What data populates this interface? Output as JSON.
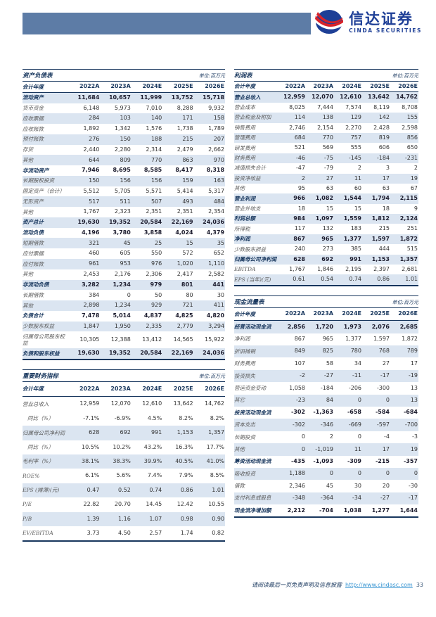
{
  "logo": {
    "cn": "信达证券",
    "en": "CINDA SECURITIES"
  },
  "colors": {
    "header_bar": "#5d7ca6",
    "accent_navy": "#17365d",
    "row_stripe": "#dbe5f1",
    "logo_blue": "#1e3f96",
    "logo_red": "#d8232a",
    "link_blue": "#3b97d3"
  },
  "tables": {
    "balance_sheet": {
      "title": "资产负债表",
      "unit": "单位:百万元",
      "columns": [
        "会计年度",
        "2022A",
        "2023A",
        "2024E",
        "2025E",
        "2026E"
      ],
      "rows": [
        {
          "label": "流动资产",
          "bold": true,
          "values": [
            "11,684",
            "10,657",
            "11,999",
            "13,752",
            "15,718"
          ]
        },
        {
          "label": "货币资金",
          "bold": false,
          "values": [
            "6,148",
            "5,973",
            "7,010",
            "8,288",
            "9,932"
          ]
        },
        {
          "label": "应收票据",
          "bold": false,
          "values": [
            "284",
            "103",
            "140",
            "171",
            "158"
          ]
        },
        {
          "label": "应收账款",
          "bold": false,
          "values": [
            "1,892",
            "1,342",
            "1,576",
            "1,738",
            "1,789"
          ]
        },
        {
          "label": "预付账款",
          "bold": false,
          "values": [
            "276",
            "150",
            "188",
            "215",
            "207"
          ]
        },
        {
          "label": "存货",
          "bold": false,
          "values": [
            "2,440",
            "2,280",
            "2,314",
            "2,479",
            "2,662"
          ]
        },
        {
          "label": "其他",
          "bold": false,
          "values": [
            "644",
            "809",
            "770",
            "863",
            "970"
          ]
        },
        {
          "label": "非流动资产",
          "bold": true,
          "values": [
            "7,946",
            "8,695",
            "8,585",
            "8,417",
            "8,318"
          ]
        },
        {
          "label": "长期股权投资",
          "bold": false,
          "values": [
            "150",
            "156",
            "156",
            "159",
            "163"
          ]
        },
        {
          "label": "固定资产（合计）",
          "bold": false,
          "values": [
            "5,512",
            "5,705",
            "5,571",
            "5,414",
            "5,317"
          ]
        },
        {
          "label": "无形资产",
          "bold": false,
          "values": [
            "517",
            "511",
            "507",
            "493",
            "484"
          ]
        },
        {
          "label": "其他",
          "bold": false,
          "values": [
            "1,767",
            "2,323",
            "2,351",
            "2,351",
            "2,354"
          ]
        },
        {
          "label": "资产总计",
          "bold": true,
          "values": [
            "19,630",
            "19,352",
            "20,584",
            "22,169",
            "24,036"
          ]
        },
        {
          "label": "流动负债",
          "bold": true,
          "values": [
            "4,196",
            "3,780",
            "3,858",
            "4,024",
            "4,379"
          ]
        },
        {
          "label": "短期借款",
          "bold": false,
          "values": [
            "321",
            "45",
            "25",
            "15",
            "35"
          ]
        },
        {
          "label": "应付票据",
          "bold": false,
          "values": [
            "460",
            "605",
            "550",
            "572",
            "652"
          ]
        },
        {
          "label": "应付账款",
          "bold": false,
          "values": [
            "961",
            "953",
            "976",
            "1,020",
            "1,110"
          ]
        },
        {
          "label": "其他",
          "bold": false,
          "values": [
            "2,453",
            "2,176",
            "2,306",
            "2,417",
            "2,582"
          ]
        },
        {
          "label": "非流动负债",
          "bold": true,
          "values": [
            "3,282",
            "1,234",
            "979",
            "801",
            "441"
          ]
        },
        {
          "label": "长期借款",
          "bold": false,
          "values": [
            "384",
            "0",
            "50",
            "80",
            "30"
          ]
        },
        {
          "label": "其他",
          "bold": false,
          "values": [
            "2,898",
            "1,234",
            "929",
            "721",
            "411"
          ]
        },
        {
          "label": "负债合计",
          "bold": true,
          "values": [
            "7,478",
            "5,014",
            "4,837",
            "4,825",
            "4,820"
          ]
        },
        {
          "label": "少数股东权益",
          "bold": false,
          "values": [
            "1,847",
            "1,950",
            "2,335",
            "2,779",
            "3,294"
          ]
        },
        {
          "label": "归属母公司股东权益",
          "bold": false,
          "values": [
            "10,305",
            "12,388",
            "13,412",
            "14,565",
            "15,922"
          ]
        },
        {
          "label": "负债和股东权益",
          "bold": true,
          "values": [
            "19,630",
            "19,352",
            "20,584",
            "22,169",
            "24,036"
          ]
        }
      ]
    },
    "key_metrics": {
      "title": "重要财务指标",
      "unit": "单位:百万元",
      "columns": [
        "会计年度",
        "2022A",
        "2023A",
        "2024E",
        "2025E",
        "2026E"
      ],
      "rows": [
        {
          "label": "营业总收入",
          "bold": false,
          "values": [
            "12,959",
            "12,070",
            "12,610",
            "13,642",
            "14,762"
          ]
        },
        {
          "label": "同比（%）",
          "bold": false,
          "indent": true,
          "values": [
            "-7.1%",
            "-6.9%",
            "4.5%",
            "8.2%",
            "8.2%"
          ]
        },
        {
          "label": "归属母公司净利润",
          "bold": false,
          "values": [
            "628",
            "692",
            "991",
            "1,153",
            "1,357"
          ]
        },
        {
          "label": "同比（%）",
          "bold": false,
          "indent": true,
          "values": [
            "10.5%",
            "10.2%",
            "43.2%",
            "16.3%",
            "17.7%"
          ]
        },
        {
          "label": "毛利率（%）",
          "bold": false,
          "values": [
            "38.1%",
            "38.3%",
            "39.9%",
            "40.5%",
            "41.0%"
          ]
        },
        {
          "label": "ROE%",
          "bold": false,
          "values": [
            "6.1%",
            "5.6%",
            "7.4%",
            "7.9%",
            "8.5%"
          ]
        },
        {
          "label": "EPS (摊薄)(元)",
          "bold": false,
          "values": [
            "0.47",
            "0.52",
            "0.74",
            "0.86",
            "1.01"
          ]
        },
        {
          "label": "P/E",
          "bold": false,
          "values": [
            "22.82",
            "20.70",
            "14.45",
            "12.42",
            "10.55"
          ]
        },
        {
          "label": "P/B",
          "bold": false,
          "values": [
            "1.39",
            "1.16",
            "1.07",
            "0.98",
            "0.90"
          ]
        },
        {
          "label": "EV/EBITDA",
          "bold": false,
          "values": [
            "3.73",
            "4.50",
            "2.57",
            "1.74",
            "0.82"
          ]
        }
      ]
    },
    "income_statement": {
      "title": "利润表",
      "unit": "单位:百万元",
      "columns": [
        "会计年度",
        "2022A",
        "2023A",
        "2024E",
        "2025E",
        "2026E"
      ],
      "rows": [
        {
          "label": "营业总收入",
          "bold": true,
          "values": [
            "12,959",
            "12,070",
            "12,610",
            "13,642",
            "14,762"
          ]
        },
        {
          "label": "营业成本",
          "bold": false,
          "values": [
            "8,025",
            "7,444",
            "7,574",
            "8,119",
            "8,708"
          ]
        },
        {
          "label": "营业税金及附加",
          "bold": false,
          "values": [
            "114",
            "138",
            "129",
            "142",
            "155"
          ]
        },
        {
          "label": "销售费用",
          "bold": false,
          "values": [
            "2,746",
            "2,154",
            "2,270",
            "2,428",
            "2,598"
          ]
        },
        {
          "label": "管理费用",
          "bold": false,
          "values": [
            "684",
            "770",
            "757",
            "819",
            "856"
          ]
        },
        {
          "label": "研发费用",
          "bold": false,
          "values": [
            "521",
            "569",
            "555",
            "606",
            "650"
          ]
        },
        {
          "label": "财务费用",
          "bold": false,
          "values": [
            "-46",
            "-75",
            "-145",
            "-184",
            "-231"
          ]
        },
        {
          "label": "减值损失合计",
          "bold": false,
          "values": [
            "-47",
            "-79",
            "2",
            "3",
            "2"
          ]
        },
        {
          "label": "投资净收益",
          "bold": false,
          "values": [
            "2",
            "27",
            "11",
            "17",
            "19"
          ]
        },
        {
          "label": "其他",
          "bold": false,
          "values": [
            "95",
            "63",
            "60",
            "63",
            "67"
          ]
        },
        {
          "label": "营业利润",
          "bold": true,
          "values": [
            "966",
            "1,082",
            "1,544",
            "1,794",
            "2,115"
          ]
        },
        {
          "label": "营业外收支",
          "bold": false,
          "values": [
            "18",
            "15",
            "15",
            "18",
            "9"
          ]
        },
        {
          "label": "利润总额",
          "bold": true,
          "values": [
            "984",
            "1,097",
            "1,559",
            "1,812",
            "2,124"
          ]
        },
        {
          "label": "所得税",
          "bold": false,
          "values": [
            "117",
            "132",
            "183",
            "215",
            "251"
          ]
        },
        {
          "label": "净利润",
          "bold": true,
          "values": [
            "867",
            "965",
            "1,377",
            "1,597",
            "1,872"
          ]
        },
        {
          "label": "少数股东损益",
          "bold": false,
          "values": [
            "240",
            "273",
            "385",
            "444",
            "515"
          ]
        },
        {
          "label": "归属母公司净利润",
          "bold": true,
          "values": [
            "628",
            "692",
            "991",
            "1,153",
            "1,357"
          ]
        },
        {
          "label": "EBITDA",
          "bold": false,
          "values": [
            "1,767",
            "1,846",
            "2,195",
            "2,397",
            "2,681"
          ]
        },
        {
          "label": "EPS (当年)(元)",
          "bold": false,
          "values": [
            "0.61",
            "0.54",
            "0.74",
            "0.86",
            "1.01"
          ]
        }
      ]
    },
    "cash_flow": {
      "title": "现金流量表",
      "unit": "单位:百万元",
      "columns": [
        "会计年度",
        "2022A",
        "2023A",
        "2024E",
        "2025E",
        "2026E"
      ],
      "rows": [
        {
          "label": "经营活动现金流",
          "bold": true,
          "values": [
            "2,856",
            "1,720",
            "1,973",
            "2,076",
            "2,685"
          ]
        },
        {
          "label": "净利润",
          "bold": false,
          "values": [
            "867",
            "965",
            "1,377",
            "1,597",
            "1,872"
          ]
        },
        {
          "label": "折旧摊销",
          "bold": false,
          "values": [
            "849",
            "825",
            "780",
            "768",
            "789"
          ]
        },
        {
          "label": "财务费用",
          "bold": false,
          "values": [
            "107",
            "58",
            "34",
            "27",
            "17"
          ]
        },
        {
          "label": "投资损失",
          "bold": false,
          "values": [
            "-2",
            "-27",
            "-11",
            "-17",
            "-19"
          ]
        },
        {
          "label": "营运资金变动",
          "bold": false,
          "values": [
            "1,058",
            "-184",
            "-206",
            "-300",
            "13"
          ]
        },
        {
          "label": "其它",
          "bold": false,
          "values": [
            "-23",
            "84",
            "0",
            "0",
            "13"
          ]
        },
        {
          "label": "投资活动现金流",
          "bold": true,
          "values": [
            "-302",
            "-1,363",
            "-658",
            "-584",
            "-684"
          ]
        },
        {
          "label": "资本支出",
          "bold": false,
          "values": [
            "-302",
            "-346",
            "-669",
            "-597",
            "-700"
          ]
        },
        {
          "label": "长期投资",
          "bold": false,
          "values": [
            "0",
            "2",
            "0",
            "-4",
            "-3"
          ]
        },
        {
          "label": "其他",
          "bold": false,
          "values": [
            "0",
            "-1,019",
            "11",
            "17",
            "19"
          ]
        },
        {
          "label": "筹资活动现金流",
          "bold": true,
          "values": [
            "-435",
            "-1,093",
            "-309",
            "-215",
            "-357"
          ]
        },
        {
          "label": "吸收投资",
          "bold": false,
          "values": [
            "1,188",
            "0",
            "0",
            "0",
            "0"
          ]
        },
        {
          "label": "借款",
          "bold": false,
          "values": [
            "2,346",
            "45",
            "30",
            "20",
            "-30"
          ]
        },
        {
          "label": "支付利息或股息",
          "bold": false,
          "values": [
            "-348",
            "-364",
            "-34",
            "-27",
            "-17"
          ]
        },
        {
          "label": "现金流净增加额",
          "bold": true,
          "values": [
            "2,212",
            "-704",
            "1,038",
            "1,277",
            "1,644"
          ]
        }
      ]
    }
  },
  "footer": {
    "disclaimer": "请阅读最后一页免责声明及信息披露",
    "link": "http://www.cindasc.com",
    "page": "33"
  }
}
